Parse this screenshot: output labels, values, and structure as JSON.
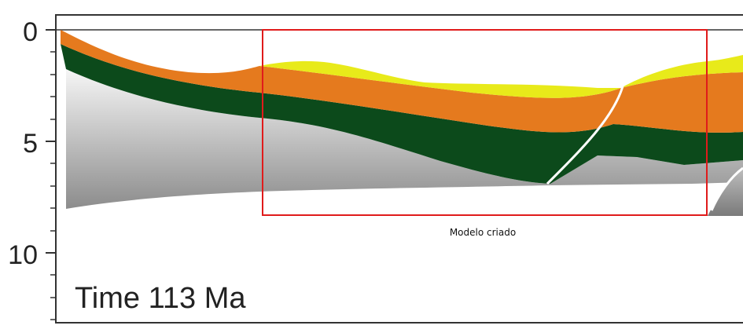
{
  "axis": {
    "ticks": [
      {
        "value": 0,
        "label": "0"
      },
      {
        "value": 5,
        "label": "5"
      },
      {
        "value": 10,
        "label": "10"
      }
    ]
  },
  "time_label": "Time 113 Ma",
  "highlight_caption": "Modelo criado",
  "colors": {
    "yellow_layer": "#e8ea1a",
    "orange_layer": "#e57a1e",
    "green_layer": "#0c4a1b",
    "basement_dark": "#8f8f8f",
    "basement_light": "#f4f4f4",
    "highlight_box": "#e01b1b",
    "fault_line": "#ffffff"
  }
}
